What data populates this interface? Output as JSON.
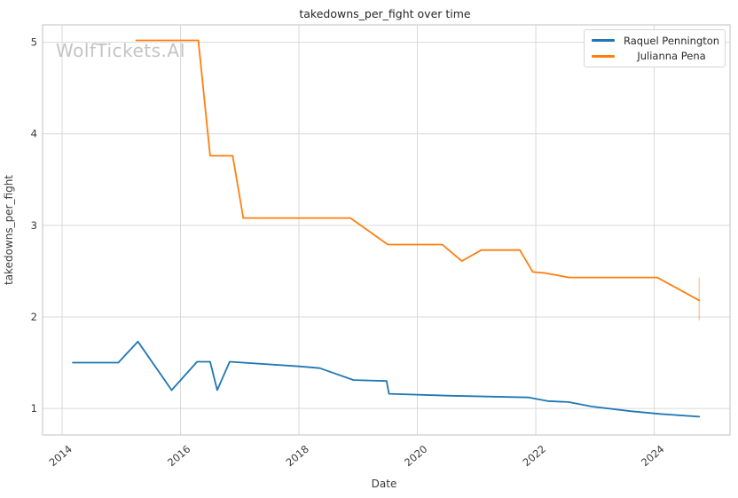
{
  "title": "takedowns_per_fight over time",
  "watermark": "WolfTickets.AI",
  "axes": {
    "x_label": "Date",
    "y_label": "takedowns_per_fight",
    "x_ticks": [
      2014,
      2016,
      2018,
      2020,
      2022,
      2024
    ],
    "y_ticks": [
      1,
      2,
      3,
      4,
      5
    ]
  },
  "legend": {
    "entries": [
      {
        "label": "Raquel Pennington",
        "color": "#1f77b4"
      },
      {
        "label": "Julianna Pena",
        "color": "#ff7f0e"
      }
    ]
  },
  "colors": {
    "grid": "#d9d9d9",
    "spine": "#cccccc",
    "background": "#ffffff",
    "series_blue": "#1f77b4",
    "series_orange": "#ff7f0e"
  },
  "chart_data": {
    "type": "line",
    "title": "takedowns_per_fight over time",
    "xlabel": "Date",
    "ylabel": "takedowns_per_fight",
    "x_unit": "year",
    "xlim": [
      2013.67,
      2025.28
    ],
    "ylim": [
      0.71,
      5.19
    ],
    "x_ticks": [
      2014,
      2016,
      2018,
      2020,
      2022,
      2024
    ],
    "y_ticks": [
      1,
      2,
      3,
      4,
      5
    ],
    "grid": true,
    "legend_position": "upper right",
    "series": [
      {
        "name": "Raquel Pennington",
        "color": "#1f77b4",
        "points": [
          [
            2014.18,
            1.5
          ],
          [
            2014.95,
            1.5
          ],
          [
            2015.28,
            1.73
          ],
          [
            2015.85,
            1.2
          ],
          [
            2016.28,
            1.51
          ],
          [
            2016.5,
            1.51
          ],
          [
            2016.62,
            1.2
          ],
          [
            2016.83,
            1.51
          ],
          [
            2018.0,
            1.46
          ],
          [
            2018.35,
            1.44
          ],
          [
            2018.92,
            1.31
          ],
          [
            2019.48,
            1.3
          ],
          [
            2019.52,
            1.16
          ],
          [
            2020.5,
            1.14
          ],
          [
            2021.88,
            1.12
          ],
          [
            2022.2,
            1.08
          ],
          [
            2022.55,
            1.07
          ],
          [
            2022.95,
            1.02
          ],
          [
            2023.6,
            0.97
          ],
          [
            2024.1,
            0.94
          ],
          [
            2024.76,
            0.91
          ]
        ]
      },
      {
        "name": "Julianna Pena",
        "color": "#ff7f0e",
        "points": [
          [
            2015.25,
            5.02
          ],
          [
            2016.3,
            5.02
          ],
          [
            2016.5,
            3.76
          ],
          [
            2016.88,
            3.76
          ],
          [
            2017.06,
            3.08
          ],
          [
            2018.87,
            3.08
          ],
          [
            2019.5,
            2.79
          ],
          [
            2020.42,
            2.79
          ],
          [
            2020.75,
            2.61
          ],
          [
            2021.08,
            2.73
          ],
          [
            2021.73,
            2.73
          ],
          [
            2021.95,
            2.49
          ],
          [
            2022.15,
            2.48
          ],
          [
            2022.56,
            2.43
          ],
          [
            2024.05,
            2.43
          ],
          [
            2024.76,
            2.18
          ]
        ],
        "error_bar_last": {
          "x": 2024.76,
          "low": 1.96,
          "high": 2.43
        }
      }
    ]
  }
}
